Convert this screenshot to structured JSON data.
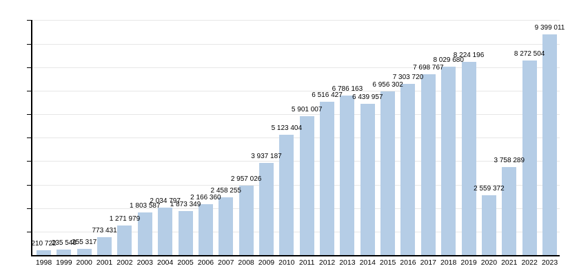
{
  "chart_data": {
    "type": "bar",
    "title": "",
    "xlabel": "",
    "ylabel": "",
    "ylim": [
      0,
      10000000
    ],
    "grid": "horizontal gridlines every 1000000, unlabeled y-axis with tick marks",
    "legend_position": "none",
    "categories": [
      "1998",
      "1999",
      "2000",
      "2001",
      "2002",
      "2003",
      "2004",
      "2005",
      "2006",
      "2007",
      "2008",
      "2009",
      "2010",
      "2011",
      "2012",
      "2013",
      "2014",
      "2015",
      "2016",
      "2017",
      "2018",
      "2019",
      "2020",
      "2021",
      "2022",
      "2023"
    ],
    "values": [
      210722,
      235548,
      255317,
      773431,
      1271979,
      1803587,
      2034797,
      1873349,
      2166360,
      2458255,
      2957026,
      3937187,
      5123404,
      5901007,
      6516427,
      6786163,
      6439957,
      6956302,
      7303720,
      7698767,
      8029680,
      8224196,
      2559372,
      3758289,
      8272504,
      9399011
    ],
    "value_labels": [
      "210 722",
      "235 548",
      "255 317",
      "773 431",
      "1 271 979",
      "1 803 587",
      "2 034 797",
      "1 873 349",
      "2 166 360",
      "2 458 255",
      "2 957 026",
      "3 937 187",
      "5 123 404",
      "5 901 007",
      "6 516 427",
      "6 786 163",
      "6 439 957",
      "6 956 302",
      "7 303 720",
      "7 698 767",
      "8 029 680",
      "8 224 196",
      "2 559 372",
      "3 758 289",
      "8 272 504",
      "9 399 011"
    ],
    "colors": {
      "bar_fill": "#b5cde6",
      "gridline": "#e6e6e6",
      "axis": "#000000",
      "text": "#000000",
      "background": "#ffffff"
    }
  }
}
